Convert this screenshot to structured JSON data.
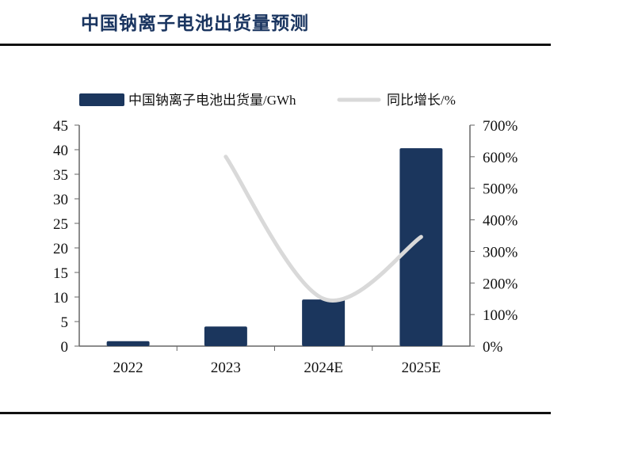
{
  "title": "中国钠离子电池出货量预测",
  "chart_data": {
    "type": "bar",
    "categories": [
      "2022",
      "2023",
      "2024E",
      "2025E"
    ],
    "series": [
      {
        "name": "中国钠离子电池出货量/GWh",
        "type": "bar",
        "axis": "left",
        "color": "#1b365d",
        "values": [
          1.0,
          4.0,
          9.5,
          40.3
        ]
      },
      {
        "name": "同比增长/%",
        "type": "line",
        "axis": "right",
        "color": "#d9d9d9",
        "values": [
          null,
          600,
          150,
          346
        ]
      }
    ],
    "left_axis": {
      "ylim": [
        0,
        45
      ],
      "ticks": [
        0,
        5,
        10,
        15,
        20,
        25,
        30,
        35,
        40,
        45
      ]
    },
    "right_axis": {
      "ylim": [
        0,
        700
      ],
      "ticks": [
        "0%",
        "100%",
        "200%",
        "300%",
        "400%",
        "500%",
        "600%",
        "700%"
      ]
    },
    "legend_position": "top",
    "grid": false
  }
}
